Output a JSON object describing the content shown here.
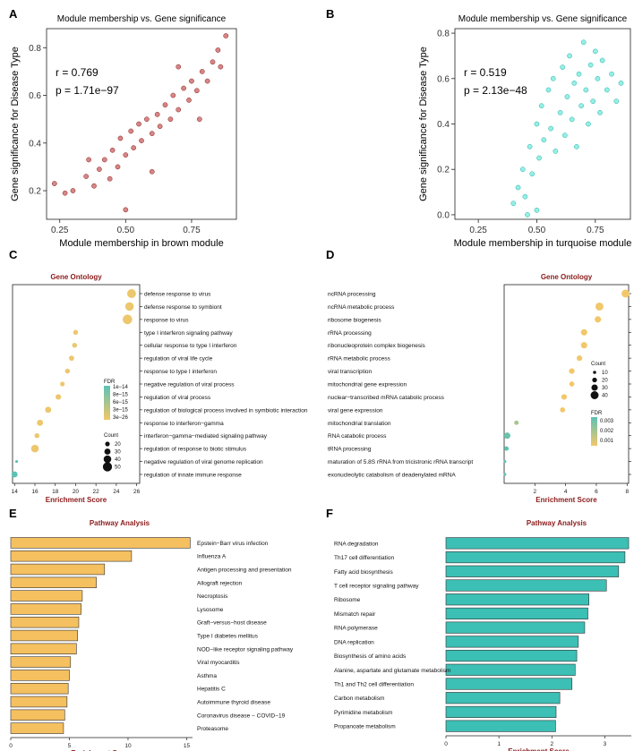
{
  "panel_labels": [
    "A",
    "B",
    "C",
    "D",
    "E",
    "F"
  ],
  "chart_data": [
    {
      "id": "A",
      "type": "scatter",
      "title": "Module membership vs. Gene significance",
      "xlabel": "Module membership in brown module",
      "ylabel": "Gene significance for Disease Type",
      "xlim": [
        0.2,
        0.92
      ],
      "ylim": [
        0.08,
        0.88
      ],
      "xticks": [
        0.25,
        0.5,
        0.75
      ],
      "yticks": [
        0.2,
        0.4,
        0.6,
        0.8
      ],
      "xtick_labels": [
        "0.25",
        "0.50",
        "0.75"
      ],
      "ytick_labels": [
        "0.2",
        "0.4",
        "0.6",
        "0.8"
      ],
      "annotations": [
        "r = 0.769",
        "p = 1.71e−97"
      ],
      "point_color": "#b22222",
      "points": [
        [
          0.23,
          0.23
        ],
        [
          0.27,
          0.19
        ],
        [
          0.3,
          0.2
        ],
        [
          0.35,
          0.26
        ],
        [
          0.38,
          0.22
        ],
        [
          0.4,
          0.29
        ],
        [
          0.42,
          0.33
        ],
        [
          0.44,
          0.25
        ],
        [
          0.45,
          0.37
        ],
        [
          0.47,
          0.3
        ],
        [
          0.48,
          0.42
        ],
        [
          0.5,
          0.35
        ],
        [
          0.52,
          0.45
        ],
        [
          0.53,
          0.38
        ],
        [
          0.55,
          0.48
        ],
        [
          0.56,
          0.41
        ],
        [
          0.58,
          0.5
        ],
        [
          0.6,
          0.44
        ],
        [
          0.62,
          0.52
        ],
        [
          0.63,
          0.47
        ],
        [
          0.65,
          0.56
        ],
        [
          0.67,
          0.5
        ],
        [
          0.68,
          0.6
        ],
        [
          0.7,
          0.54
        ],
        [
          0.72,
          0.63
        ],
        [
          0.74,
          0.58
        ],
        [
          0.75,
          0.66
        ],
        [
          0.77,
          0.62
        ],
        [
          0.79,
          0.7
        ],
        [
          0.81,
          0.66
        ],
        [
          0.83,
          0.74
        ],
        [
          0.85,
          0.79
        ],
        [
          0.86,
          0.72
        ],
        [
          0.88,
          0.85
        ],
        [
          0.5,
          0.12
        ],
        [
          0.6,
          0.28
        ],
        [
          0.36,
          0.33
        ],
        [
          0.7,
          0.72
        ],
        [
          0.78,
          0.5
        ]
      ]
    },
    {
      "id": "B",
      "type": "scatter",
      "title": "Module membership vs. Gene significance",
      "xlabel": "Module membership in turquoise module",
      "ylabel": "Gene significance for Disease Type",
      "xlim": [
        0.15,
        0.9
      ],
      "ylim": [
        -0.02,
        0.82
      ],
      "xticks": [
        0.25,
        0.5,
        0.75
      ],
      "yticks": [
        0.0,
        0.2,
        0.4,
        0.6,
        0.8
      ],
      "xtick_labels": [
        "0.25",
        "0.50",
        "0.75"
      ],
      "ytick_labels": [
        "0.0",
        "0.2",
        "0.4",
        "0.6",
        "0.8"
      ],
      "annotations": [
        "r = 0.519",
        "p = 2.13e−48"
      ],
      "point_color": "#40e0d0",
      "points": [
        [
          0.4,
          0.05
        ],
        [
          0.42,
          0.12
        ],
        [
          0.44,
          0.2
        ],
        [
          0.45,
          0.08
        ],
        [
          0.47,
          0.3
        ],
        [
          0.48,
          0.18
        ],
        [
          0.5,
          0.4
        ],
        [
          0.51,
          0.25
        ],
        [
          0.52,
          0.48
        ],
        [
          0.53,
          0.33
        ],
        [
          0.55,
          0.55
        ],
        [
          0.56,
          0.38
        ],
        [
          0.57,
          0.6
        ],
        [
          0.58,
          0.28
        ],
        [
          0.6,
          0.45
        ],
        [
          0.61,
          0.65
        ],
        [
          0.62,
          0.35
        ],
        [
          0.63,
          0.52
        ],
        [
          0.64,
          0.7
        ],
        [
          0.65,
          0.42
        ],
        [
          0.66,
          0.58
        ],
        [
          0.67,
          0.3
        ],
        [
          0.68,
          0.62
        ],
        [
          0.69,
          0.48
        ],
        [
          0.7,
          0.76
        ],
        [
          0.71,
          0.55
        ],
        [
          0.72,
          0.4
        ],
        [
          0.73,
          0.66
        ],
        [
          0.74,
          0.5
        ],
        [
          0.75,
          0.72
        ],
        [
          0.76,
          0.6
        ],
        [
          0.77,
          0.45
        ],
        [
          0.78,
          0.68
        ],
        [
          0.8,
          0.55
        ],
        [
          0.82,
          0.62
        ],
        [
          0.84,
          0.5
        ],
        [
          0.86,
          0.58
        ],
        [
          0.5,
          0.02
        ],
        [
          0.46,
          0.0
        ]
      ]
    },
    {
      "id": "C",
      "type": "scatter",
      "title": "Gene Ontology",
      "xlabel": "Enrichment Score",
      "xlim": [
        13.8,
        26.3
      ],
      "xticks": [
        14,
        16,
        18,
        20,
        22,
        24,
        26
      ],
      "categories": [
        "defense response to virus",
        "defense response to symbiont",
        "response to virus",
        "type I interferon signaling pathway",
        "cellular response to type I interferon",
        "regulation of viral life cycle",
        "response to type I interferon",
        "negative regulation of viral process",
        "regulation of viral process",
        "regulation of biological process involved in symbiotic interaction",
        "response to interferon−gamma",
        "interferon−gamma−mediated signaling pathway",
        "regulation of response to biotic stimulus",
        "negative regulation of viral genome replication",
        "regulation of innate immune response"
      ],
      "values": [
        25.5,
        25.3,
        25.1,
        20.0,
        19.9,
        19.6,
        19.2,
        18.7,
        18.3,
        17.3,
        16.5,
        16.2,
        16.0,
        14.2,
        14.0
      ],
      "counts": [
        48,
        46,
        52,
        22,
        22,
        24,
        22,
        20,
        26,
        30,
        30,
        22,
        40,
        8,
        30
      ],
      "fdr": [
        3e-26,
        3e-26,
        3e-26,
        3e-26,
        3e-26,
        3e-26,
        3e-26,
        3e-26,
        3e-26,
        3e-26,
        3e-26,
        3e-26,
        3e-26,
        6e-15,
        1e-14
      ],
      "fdr_legend": {
        "title": "FDR",
        "labels": [
          "1e−14",
          "8e−15",
          "6e−15",
          "3e−15",
          "3e−26"
        ]
      },
      "count_legend": {
        "title": "Count",
        "labels": [
          "20",
          "30",
          "40",
          "50"
        ],
        "values": [
          20,
          30,
          40,
          50
        ]
      }
    },
    {
      "id": "D",
      "type": "scatter",
      "title": "Gene Ontology",
      "xlabel": "Enrichment Score",
      "xlim": [
        0,
        8.1
      ],
      "xticks": [
        2,
        4,
        6,
        8
      ],
      "categories": [
        "ncRNA processing",
        "ncRNA metabolic process",
        "ribosome biogenesis",
        "rRNA processing",
        "ribonucleoprotein complex biogenesis",
        "rRNA metabolic process",
        "viral transcription",
        "mitochondrial gene expression",
        "nuclear−transcribed mRNA catabolic process",
        "viral gene expression",
        "mitochondrial translation",
        "RNA catabolic process",
        "tRNA processing",
        "maturation of 5.8S rRNA from tricistronic rRNA transcript",
        "exonucleolytic catabolism of deadenylated mRNA"
      ],
      "values": [
        7.9,
        6.2,
        6.1,
        5.2,
        5.2,
        4.9,
        4.4,
        4.4,
        3.9,
        3.8,
        0.8,
        0.2,
        0.15,
        0.05,
        0.05
      ],
      "counts": [
        40,
        40,
        30,
        30,
        30,
        25,
        25,
        22,
        25,
        22,
        18,
        30,
        18,
        8,
        8
      ],
      "fdr": [
        0.001,
        0.001,
        0.001,
        0.001,
        0.001,
        0.001,
        0.001,
        0.001,
        0.001,
        0.001,
        0.002,
        0.0028,
        0.003,
        0.003,
        0.003
      ],
      "fdr_legend": {
        "title": "FDR",
        "labels": [
          "0.003",
          "0.002",
          "0.001"
        ]
      },
      "count_legend": {
        "title": "Count",
        "labels": [
          "10",
          "20",
          "30",
          "40"
        ],
        "values": [
          10,
          20,
          30,
          40
        ]
      }
    },
    {
      "id": "E",
      "type": "bar",
      "orientation": "horizontal",
      "title": "Pathway Analysis",
      "xlabel": "Enrichment Score",
      "xlim": [
        0,
        15.5
      ],
      "xticks": [
        0,
        5,
        10,
        15
      ],
      "bar_color": "#f5c060",
      "categories": [
        "Epstein−Barr virus infection",
        "Influenza A",
        "Antigen processing and presentation",
        "Allograft rejection",
        "Necroptosis",
        "Lysosome",
        "Graft−versus−host disease",
        "Type I diabetes mellitus",
        "NOD−like receptor signaling pathway",
        "Viral myocarditis",
        "Asthma",
        "Hepatitis C",
        "Autoimmune thyroid disease",
        "Coronavirus disease − COVID−19",
        "Proteasome"
      ],
      "values": [
        15.3,
        10.3,
        8.0,
        7.3,
        6.1,
        6.0,
        5.8,
        5.7,
        5.6,
        5.1,
        5.0,
        4.9,
        4.8,
        4.6,
        4.5
      ]
    },
    {
      "id": "F",
      "type": "bar",
      "orientation": "horizontal",
      "title": "Pathway Analysis",
      "xlabel": "Enrichment Score",
      "xlim": [
        0,
        3.5
      ],
      "xticks": [
        0,
        1,
        2,
        3
      ],
      "bar_color": "#3cbfb4",
      "categories": [
        "RNA degradation",
        "Th17 cell differentiation",
        "Fatty acid biosynthesis",
        "T cell receptor signaling pathway",
        "Ribosome",
        "Mismatch repair",
        "RNA polymerase",
        "DNA replication",
        "Biosynthesis of amino acids",
        "Alanine, aspartate and glutamate metabolism",
        "Th1 and Th2 cell differentiation",
        "Carbon metabolism",
        "Pyrimidine metabolism",
        "Propanoate metabolism"
      ],
      "values": [
        3.45,
        3.38,
        3.26,
        3.03,
        2.7,
        2.68,
        2.62,
        2.5,
        2.47,
        2.44,
        2.38,
        2.15,
        2.08,
        2.07
      ]
    }
  ]
}
